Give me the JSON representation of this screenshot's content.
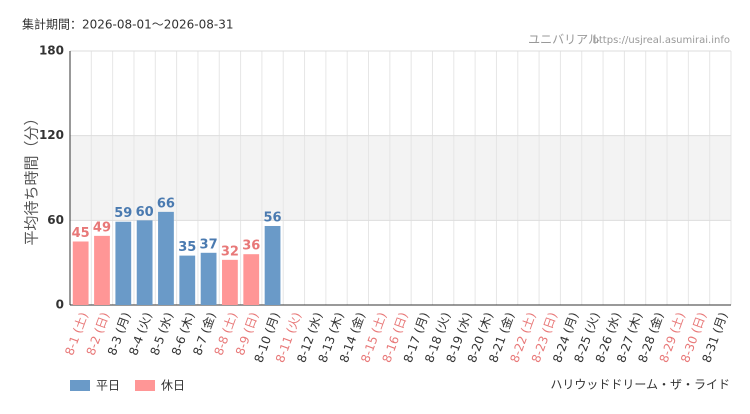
{
  "chart_data": {
    "type": "bar",
    "period": "集計期間：2026-08-01～2026-08-31",
    "source": "ユニバリアル",
    "url": "https://usjreal.asumirai.info",
    "y_label": "平均待ち時間（分）",
    "attraction": "ハリウッドドリーム・ザ・ライド",
    "categories": [
      "8-1 (土)",
      "8-2 (日)",
      "8-3 (月)",
      "8-4 (火)",
      "8-5 (水)",
      "8-6 (木)",
      "8-7 (金)",
      "8-8 (土)",
      "8-9 (日)",
      "8-10 (月)",
      "8-11 (火)",
      "8-12 (水)",
      "8-13 (木)",
      "8-14 (金)",
      "8-15 (土)",
      "8-16 (日)",
      "8-17 (月)",
      "8-18 (火)",
      "8-19 (水)",
      "8-20 (木)",
      "8-21 (金)",
      "8-22 (土)",
      "8-23 (日)",
      "8-24 (月)",
      "8-25 (火)",
      "8-26 (水)",
      "8-27 (木)",
      "8-28 (金)",
      "8-29 (土)",
      "8-30 (日)",
      "8-31 (月)"
    ],
    "label_colors": [
      "#e87878",
      "#e87878",
      "#333",
      "#333",
      "#333",
      "#333",
      "#333",
      "#e87878",
      "#e87878",
      "#333",
      "#e87878",
      "#333",
      "#333",
      "#333",
      "#e87878",
      "#e87878",
      "#333",
      "#333",
      "#333",
      "#333",
      "#333",
      "#e87878",
      "#e87878",
      "#333",
      "#333",
      "#333",
      "#333",
      "#333",
      "#e87878",
      "#e87878",
      "#333"
    ],
    "series": [
      {
        "name": "平日",
        "color": "#6a9ac8",
        "label_color": "#4a7ab0",
        "values": [
          null,
          null,
          59,
          60,
          66,
          35,
          37,
          null,
          null,
          56,
          null,
          null,
          null,
          null,
          null,
          null,
          null,
          null,
          null,
          null,
          null,
          null,
          null,
          null,
          null,
          null,
          null,
          null,
          null,
          null,
          null
        ]
      },
      {
        "name": "休日",
        "color": "#ff9696",
        "label_color": "#e87878",
        "values": [
          45,
          49,
          null,
          null,
          null,
          null,
          null,
          32,
          36,
          null,
          null,
          null,
          null,
          null,
          null,
          null,
          null,
          null,
          null,
          null,
          null,
          null,
          null,
          null,
          null,
          null,
          null,
          null,
          null,
          null,
          null
        ]
      }
    ],
    "ylim": [
      0,
      180
    ],
    "yticks": [
      0,
      60,
      120,
      180
    ],
    "shaded_band": [
      60,
      120
    ],
    "grid": true
  }
}
